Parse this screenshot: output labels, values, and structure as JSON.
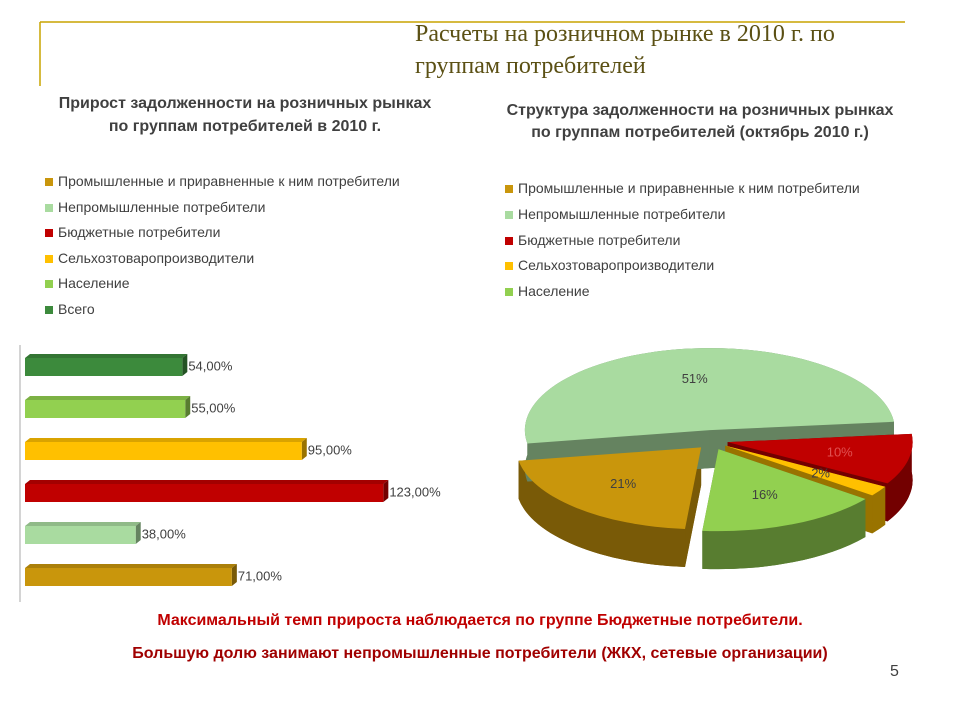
{
  "title": "Расчеты на розничном рынке в 2010 г. по группам потребителей",
  "chart_data": [
    {
      "type": "bar",
      "orientation": "horizontal",
      "title": "Прирост задолженности на розничных рынках по группам потребителей в 2010 г.",
      "xlim": [
        0,
        150
      ],
      "series": [
        {
          "name": "Промышленные и приравненные к ним потребители",
          "color": "#c9960c",
          "values": [
            71
          ],
          "value_labels": [
            "71,00%"
          ]
        },
        {
          "name": "Непромышленные потребители",
          "color": "#a9dba0",
          "values": [
            38
          ],
          "value_labels": [
            "38,00%"
          ]
        },
        {
          "name": "Бюджетные потребители",
          "color": "#c00000",
          "values": [
            123
          ],
          "value_labels": [
            "123,00%"
          ]
        },
        {
          "name": "Сельхозтоваропроизводители",
          "color": "#ffc000",
          "values": [
            95
          ],
          "value_labels": [
            "95,00%"
          ]
        },
        {
          "name": "Население",
          "color": "#92d050",
          "values": [
            55
          ],
          "value_labels": [
            "55,00%"
          ]
        },
        {
          "name": "Всего",
          "color": "#3c8a3c",
          "values": [
            54
          ],
          "value_labels": [
            "54,00%"
          ]
        }
      ]
    },
    {
      "type": "pie",
      "title": "Структура задолженности на розничных рынках по группам потребителей (октябрь 2010 г.)",
      "categories": [
        "Промышленные и приравненные к ним потребители",
        "Непромышленные потребители",
        "Бюджетные потребители",
        "Сельхозтоваропроизводители",
        "Население"
      ],
      "values": [
        21,
        51,
        10,
        2,
        16
      ],
      "value_labels": [
        "21%",
        "51%",
        "10%",
        "2%",
        "16%"
      ],
      "colors": [
        "#c9960c",
        "#a9dba0",
        "#c00000",
        "#ffc000",
        "#92d050"
      ]
    }
  ],
  "notes": [
    "Максимальный темп прироста наблюдается по группе Бюджетные потребители.",
    "Большую долю занимают непромышленные потребители (ЖКХ, сетевые организации)"
  ],
  "page_number": "5"
}
